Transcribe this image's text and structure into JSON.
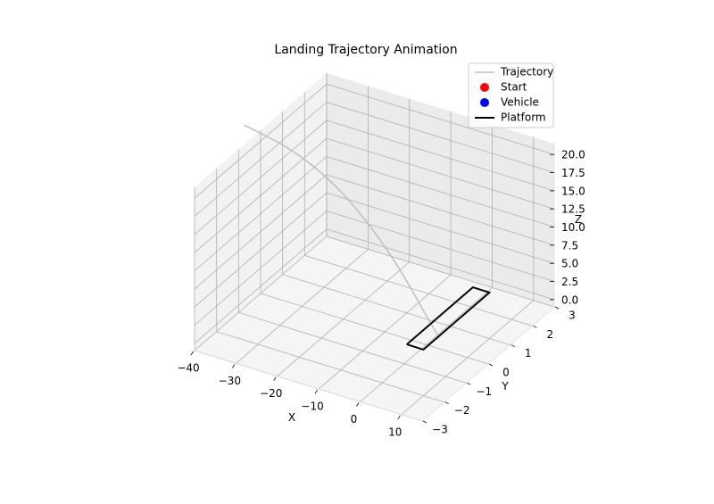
{
  "chart_data": {
    "type": "line3d",
    "title": "Landing Trajectory Animation",
    "xlabel": "X",
    "ylabel": "Y",
    "zlabel": "Z",
    "xlim": [
      -40,
      15
    ],
    "ylim": [
      -3,
      3
    ],
    "zlim": [
      -1,
      21.5
    ],
    "xticks": [
      -40,
      -30,
      -20,
      -10,
      0,
      10
    ],
    "yticks": [
      -3,
      -2,
      -1,
      0,
      1,
      2,
      3
    ],
    "zticks": [
      0.0,
      2.5,
      5.0,
      7.5,
      10.0,
      12.5,
      15.0,
      17.5,
      20.0
    ],
    "xtick_labels": [
      "−40",
      "−30",
      "−20",
      "−10",
      "0",
      "10"
    ],
    "ytick_labels": [
      "−3",
      "−2",
      "−1",
      "0",
      "1",
      "2",
      "3"
    ],
    "ztick_labels": [
      "0.0",
      "2.5",
      "5.0",
      "7.5",
      "10.0",
      "12.5",
      "15.0",
      "17.5",
      "20.0"
    ],
    "grid": true,
    "legend": {
      "placement": "top-right",
      "entries": [
        {
          "label": "Trajectory",
          "marker": "line",
          "color": "#bfbfbf"
        },
        {
          "label": "Start",
          "marker": "dot",
          "color": "#ff0000"
        },
        {
          "label": "Vehicle",
          "marker": "dot",
          "color": "#0000ff"
        },
        {
          "label": "Platform",
          "marker": "line",
          "color": "#000000"
        }
      ]
    },
    "series": [
      {
        "name": "Trajectory",
        "color": "#bfbfbf",
        "x": [
          -44.0,
          -38.0,
          -32.0,
          -26.0,
          -20.0,
          -14.0,
          -8.0,
          -3.0,
          1.0,
          3.0,
          3.0
        ],
        "y": [
          0,
          0,
          0,
          0,
          0,
          0,
          0,
          0,
          0,
          0,
          0
        ],
        "z": [
          21.5,
          20.9,
          20.0,
          18.5,
          16.3,
          13.3,
          9.5,
          5.6,
          2.2,
          0.7,
          0.4
        ]
      }
    ],
    "platform": {
      "name": "Platform",
      "color": "#000000",
      "x": [
        -2.0,
        2.0,
        2.0,
        -2.0,
        -2.0
      ],
      "y": [
        -0.5,
        -0.5,
        2.5,
        2.5,
        -0.5
      ],
      "z": [
        0,
        0,
        0,
        0,
        0
      ]
    }
  }
}
